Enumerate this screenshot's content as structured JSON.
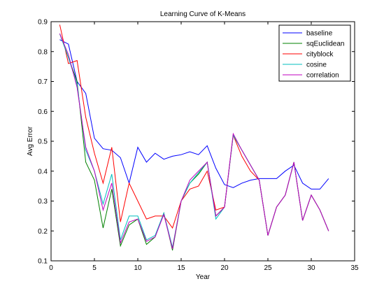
{
  "chart_data": {
    "type": "line",
    "title": "Learning Curve of K-Means",
    "xlabel": "Year",
    "ylabel": "Avg Error",
    "xlim": [
      0,
      35
    ],
    "ylim": [
      0.1,
      0.9
    ],
    "xticks": [
      0,
      5,
      10,
      15,
      20,
      25,
      30,
      35
    ],
    "yticks": [
      0.1,
      0.2,
      0.3,
      0.4,
      0.5,
      0.6,
      0.7,
      0.8,
      0.9
    ],
    "grid": false,
    "legend_position": "top-right",
    "x": [
      1,
      2,
      3,
      4,
      5,
      6,
      7,
      8,
      9,
      10,
      11,
      12,
      13,
      14,
      15,
      16,
      17,
      18,
      19,
      20,
      21,
      22,
      23,
      24,
      25,
      26,
      27,
      28,
      29,
      30,
      31,
      32
    ],
    "series": [
      {
        "name": "baseline",
        "color": "#0000ff",
        "values": [
          0.84,
          0.825,
          0.7,
          0.66,
          0.51,
          0.475,
          0.47,
          0.445,
          0.36,
          0.48,
          0.43,
          0.46,
          0.44,
          0.45,
          0.455,
          0.465,
          0.455,
          0.485,
          0.41,
          0.355,
          0.345,
          0.36,
          0.37,
          0.375,
          0.375,
          0.375,
          0.4,
          0.42,
          0.36,
          0.34,
          0.34,
          0.375
        ]
      },
      {
        "name": "sqEuclidean",
        "color": "#008000",
        "values": [
          0.86,
          0.78,
          0.7,
          0.43,
          0.37,
          0.21,
          0.34,
          0.15,
          0.22,
          0.24,
          0.155,
          0.18,
          0.26,
          0.135,
          0.3,
          0.36,
          0.39,
          0.43,
          0.25,
          0.28,
          0.52,
          0.47,
          0.42,
          0.37,
          0.185,
          0.28,
          0.32,
          0.43,
          0.235,
          0.32,
          0.27,
          0.2
        ]
      },
      {
        "name": "cityblock",
        "color": "#ff0000",
        "values": [
          0.89,
          0.76,
          0.77,
          0.58,
          0.46,
          0.36,
          0.48,
          0.23,
          0.36,
          0.3,
          0.24,
          0.25,
          0.25,
          0.21,
          0.3,
          0.34,
          0.35,
          0.4,
          0.27,
          0.28,
          0.52,
          0.45,
          0.4,
          0.37,
          0.185,
          0.28,
          0.32,
          0.43,
          0.235,
          0.32,
          0.27,
          0.2
        ]
      },
      {
        "name": "cosine",
        "color": "#00bfbf",
        "values": [
          0.86,
          0.78,
          0.69,
          0.47,
          0.4,
          0.29,
          0.39,
          0.17,
          0.25,
          0.25,
          0.17,
          0.185,
          0.26,
          0.145,
          0.3,
          0.36,
          0.395,
          0.43,
          0.24,
          0.28,
          0.52,
          0.47,
          0.42,
          0.37,
          0.185,
          0.28,
          0.32,
          0.43,
          0.235,
          0.32,
          0.27,
          0.2
        ]
      },
      {
        "name": "correlation",
        "color": "#bf00bf",
        "values": [
          0.86,
          0.79,
          0.68,
          0.48,
          0.4,
          0.27,
          0.36,
          0.16,
          0.23,
          0.24,
          0.165,
          0.18,
          0.255,
          0.14,
          0.3,
          0.37,
          0.4,
          0.43,
          0.25,
          0.28,
          0.525,
          0.47,
          0.42,
          0.37,
          0.185,
          0.28,
          0.32,
          0.43,
          0.235,
          0.32,
          0.27,
          0.2
        ]
      }
    ]
  }
}
